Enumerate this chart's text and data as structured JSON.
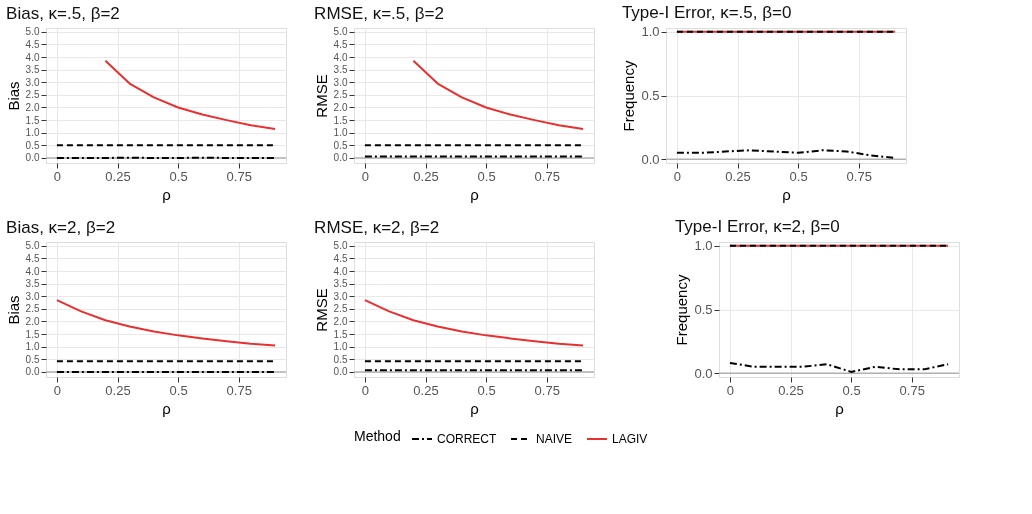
{
  "chart_data": [
    {
      "type": "line",
      "title": "Bias, κ=.5, β=2",
      "xlabel": "ρ",
      "ylabel": "Bias",
      "legend_title": "Method",
      "legend": "bottom",
      "grid": true,
      "marker": "none",
      "x": [
        0,
        0.1,
        0.2,
        0.3,
        0.4,
        0.5,
        0.6,
        0.7,
        0.8,
        0.9
      ],
      "xlim": [
        -0.045,
        0.945
      ],
      "xticks": [
        0,
        0.25,
        0.5,
        0.75
      ],
      "ylim": [
        -0.2,
        5.15
      ],
      "yticks": [
        {
          "value": 0,
          "label": "0.0"
        },
        0.5,
        {
          "value": 1,
          "label": "1.0"
        },
        1.5,
        {
          "value": 2,
          "label": "2.0"
        },
        2.5,
        {
          "value": 3,
          "label": "3.0"
        },
        3.5,
        {
          "value": 4,
          "label": "4.0"
        },
        4.5,
        {
          "value": 5,
          "label": "5.0"
        }
      ],
      "ref_lines": [
        {
          "axis": "y",
          "value": 0,
          "label": null,
          "color": "#b0b0b0"
        }
      ],
      "series": [
        {
          "name": "CORRECT",
          "color": "#000000",
          "line_style": "dashdot",
          "values": [
            0.0,
            0.0,
            0.0,
            0.01,
            0.0,
            0.0,
            0.01,
            0.0,
            0.0,
            0.0
          ]
        },
        {
          "name": "NAIVE",
          "color": "#000000",
          "line_style": "dashed",
          "values": [
            0.5,
            0.5,
            0.5,
            0.5,
            0.5,
            0.5,
            0.5,
            0.5,
            0.5,
            0.5
          ]
        },
        {
          "name": "LAGIV",
          "color": "#e8302f",
          "line_style": "solid",
          "values": [
            null,
            null,
            3.85,
            2.95,
            2.4,
            2.0,
            1.72,
            1.5,
            1.3,
            1.15
          ]
        }
      ]
    },
    {
      "type": "line",
      "title": "RMSE, κ=.5, β=2",
      "xlabel": "ρ",
      "ylabel": "RMSE",
      "grid": true,
      "marker": "none",
      "x": [
        0,
        0.1,
        0.2,
        0.3,
        0.4,
        0.5,
        0.6,
        0.7,
        0.8,
        0.9
      ],
      "xlim": [
        -0.045,
        0.945
      ],
      "xticks": [
        0,
        0.25,
        0.5,
        0.75
      ],
      "ylim": [
        -0.2,
        5.15
      ],
      "yticks": [
        {
          "value": 0,
          "label": "0.0"
        },
        0.5,
        {
          "value": 1,
          "label": "1.0"
        },
        1.5,
        {
          "value": 2,
          "label": "2.0"
        },
        2.5,
        {
          "value": 3,
          "label": "3.0"
        },
        3.5,
        {
          "value": 4,
          "label": "4.0"
        },
        4.5,
        {
          "value": 5,
          "label": "5.0"
        }
      ],
      "ref_lines": [
        {
          "axis": "y",
          "value": 0,
          "label": null,
          "color": "#b0b0b0"
        }
      ],
      "series": [
        {
          "color": "#000000",
          "line_style": "dashdot",
          "values": [
            0.06,
            0.06,
            0.06,
            0.06,
            0.06,
            0.06,
            0.06,
            0.06,
            0.06,
            0.06
          ]
        },
        {
          "color": "#000000",
          "line_style": "dashed",
          "values": [
            0.5,
            0.5,
            0.5,
            0.5,
            0.5,
            0.5,
            0.5,
            0.5,
            0.5,
            0.5
          ]
        },
        {
          "color": "#e8302f",
          "line_style": "solid",
          "values": [
            null,
            null,
            3.85,
            2.95,
            2.4,
            2.0,
            1.72,
            1.5,
            1.3,
            1.15
          ]
        }
      ]
    },
    {
      "type": "line",
      "title": "Type-I Error, κ=.5, β=0",
      "xlabel": "ρ",
      "ylabel": "Frequency",
      "grid": true,
      "marker": "none",
      "x": [
        0,
        0.1,
        0.2,
        0.3,
        0.4,
        0.5,
        0.6,
        0.7,
        0.8,
        0.9
      ],
      "xlim": [
        -0.045,
        0.945
      ],
      "xticks": [
        0,
        0.25,
        0.5,
        0.75
      ],
      "ylim": [
        -0.03,
        1.03
      ],
      "yticks": [
        {
          "value": 0,
          "label": "0.0"
        },
        0.5,
        {
          "value": 1,
          "label": "1.0"
        }
      ],
      "ref_lines": [
        {
          "axis": "y",
          "value": 0,
          "label": null,
          "color": "#b0b0b0"
        }
      ],
      "series": [
        {
          "color": "#000000",
          "line_style": "dashdot",
          "values": [
            0.05,
            0.05,
            0.06,
            0.07,
            0.06,
            0.05,
            0.07,
            0.06,
            0.03,
            0.01
          ]
        },
        {
          "color": "#000000",
          "line_style": "dashed",
          "values": [
            1.0,
            1.0,
            1.0,
            1.0,
            1.0,
            1.0,
            1.0,
            1.0,
            1.0,
            1.0
          ]
        },
        {
          "color": "#e8302f",
          "line_style": "solid",
          "values": [
            1.0,
            1.0,
            1.0,
            1.0,
            1.0,
            1.0,
            1.0,
            1.0,
            1.0,
            1.0
          ]
        }
      ]
    },
    {
      "type": "line",
      "title": "Bias, κ=2, β=2",
      "xlabel": "ρ",
      "ylabel": "Bias",
      "grid": true,
      "marker": "none",
      "x": [
        0,
        0.1,
        0.2,
        0.3,
        0.4,
        0.5,
        0.6,
        0.7,
        0.8,
        0.9
      ],
      "xlim": [
        -0.045,
        0.945
      ],
      "xticks": [
        0,
        0.25,
        0.5,
        0.75
      ],
      "ylim": [
        -0.2,
        5.15
      ],
      "yticks": [
        {
          "value": 0,
          "label": "0.0"
        },
        0.5,
        {
          "value": 1,
          "label": "1.0"
        },
        1.5,
        {
          "value": 2,
          "label": "2.0"
        },
        2.5,
        {
          "value": 3,
          "label": "3.0"
        },
        3.5,
        {
          "value": 4,
          "label": "4.0"
        },
        4.5,
        {
          "value": 5,
          "label": "5.0"
        }
      ],
      "ref_lines": [
        {
          "axis": "y",
          "value": 0,
          "label": null,
          "color": "#b0b0b0"
        }
      ],
      "series": [
        {
          "color": "#000000",
          "line_style": "dashdot",
          "values": [
            0.0,
            0.0,
            0.0,
            0.0,
            0.0,
            0.0,
            0.0,
            0.0,
            0.0,
            0.0
          ]
        },
        {
          "color": "#000000",
          "line_style": "dashed",
          "values": [
            0.42,
            0.42,
            0.42,
            0.42,
            0.42,
            0.42,
            0.42,
            0.42,
            0.42,
            0.42
          ]
        },
        {
          "color": "#e8302f",
          "line_style": "solid",
          "values": [
            2.85,
            2.4,
            2.05,
            1.8,
            1.6,
            1.45,
            1.33,
            1.22,
            1.12,
            1.05
          ]
        }
      ]
    },
    {
      "type": "line",
      "title": "RMSE, κ=2, β=2",
      "xlabel": "ρ",
      "ylabel": "RMSE",
      "grid": true,
      "marker": "none",
      "x": [
        0,
        0.1,
        0.2,
        0.3,
        0.4,
        0.5,
        0.6,
        0.7,
        0.8,
        0.9
      ],
      "xlim": [
        -0.045,
        0.945
      ],
      "xticks": [
        0,
        0.25,
        0.5,
        0.75
      ],
      "ylim": [
        -0.2,
        5.15
      ],
      "yticks": [
        {
          "value": 0,
          "label": "0.0"
        },
        0.5,
        {
          "value": 1,
          "label": "1.0"
        },
        1.5,
        {
          "value": 2,
          "label": "2.0"
        },
        2.5,
        {
          "value": 3,
          "label": "3.0"
        },
        3.5,
        {
          "value": 4,
          "label": "4.0"
        },
        4.5,
        {
          "value": 5,
          "label": "5.0"
        }
      ],
      "ref_lines": [
        {
          "axis": "y",
          "value": 0,
          "label": null,
          "color": "#b0b0b0"
        }
      ],
      "series": [
        {
          "color": "#000000",
          "line_style": "dashdot",
          "values": [
            0.07,
            0.07,
            0.07,
            0.07,
            0.07,
            0.07,
            0.07,
            0.07,
            0.07,
            0.07
          ]
        },
        {
          "color": "#000000",
          "line_style": "dashed",
          "values": [
            0.42,
            0.42,
            0.42,
            0.42,
            0.42,
            0.42,
            0.42,
            0.42,
            0.42,
            0.42
          ]
        },
        {
          "color": "#e8302f",
          "line_style": "solid",
          "values": [
            2.85,
            2.4,
            2.05,
            1.8,
            1.6,
            1.45,
            1.33,
            1.22,
            1.12,
            1.05
          ]
        }
      ]
    },
    {
      "type": "line",
      "title": "Type-I Error, κ=2, β=0",
      "xlabel": "ρ",
      "ylabel": "Frequency",
      "grid": true,
      "marker": "none",
      "x": [
        0,
        0.1,
        0.2,
        0.3,
        0.4,
        0.5,
        0.6,
        0.7,
        0.8,
        0.9
      ],
      "xlim": [
        -0.045,
        0.945
      ],
      "xticks": [
        0,
        0.25,
        0.5,
        0.75
      ],
      "ylim": [
        -0.03,
        1.03
      ],
      "yticks": [
        {
          "value": 0,
          "label": "0.0"
        },
        0.5,
        {
          "value": 1,
          "label": "1.0"
        }
      ],
      "ref_lines": [
        {
          "axis": "y",
          "value": 0,
          "label": null,
          "color": "#b0b0b0"
        }
      ],
      "series": [
        {
          "color": "#000000",
          "line_style": "dashdot",
          "values": [
            0.08,
            0.05,
            0.05,
            0.05,
            0.07,
            0.01,
            0.05,
            0.03,
            0.03,
            0.07
          ]
        },
        {
          "color": "#000000",
          "line_style": "dashed",
          "values": [
            1.0,
            1.0,
            1.0,
            1.0,
            1.0,
            1.0,
            1.0,
            1.0,
            1.0,
            1.0
          ]
        },
        {
          "color": "#e8302f",
          "line_style": "solid",
          "values": [
            1.0,
            1.0,
            1.0,
            1.0,
            1.0,
            1.0,
            1.0,
            1.0,
            1.0,
            1.0
          ]
        }
      ]
    }
  ]
}
